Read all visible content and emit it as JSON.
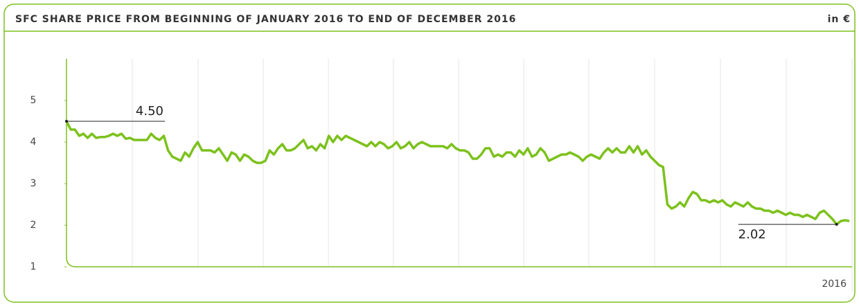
{
  "chart_data": {
    "type": "line",
    "title": "SFC SHARE PRICE FROM BEGINNING OF JANUARY 2016 TO END OF DECEMBER 2016",
    "unit_label": "in €",
    "x_label": "2016",
    "color": "#7cc11c",
    "ylim": [
      1,
      6
    ],
    "yticks": [
      1,
      2,
      3,
      4,
      5
    ],
    "annotations": [
      {
        "value": 4.5,
        "label": "4.50"
      },
      {
        "value": 2.02,
        "label": "2.02"
      }
    ],
    "values": [
      4.5,
      4.3,
      4.3,
      4.15,
      4.2,
      4.1,
      4.2,
      4.1,
      4.12,
      4.12,
      4.15,
      4.2,
      4.15,
      4.2,
      4.08,
      4.1,
      4.05,
      4.05,
      4.05,
      4.05,
      4.2,
      4.1,
      4.05,
      4.15,
      3.8,
      3.65,
      3.6,
      3.55,
      3.75,
      3.65,
      3.85,
      4.0,
      3.8,
      3.8,
      3.8,
      3.75,
      3.85,
      3.7,
      3.55,
      3.75,
      3.7,
      3.55,
      3.7,
      3.65,
      3.55,
      3.5,
      3.5,
      3.55,
      3.8,
      3.7,
      3.85,
      3.95,
      3.8,
      3.8,
      3.85,
      3.95,
      4.05,
      3.85,
      3.9,
      3.8,
      3.95,
      3.85,
      4.15,
      4.0,
      4.15,
      4.05,
      4.15,
      4.1,
      4.05,
      4.0,
      3.95,
      3.9,
      4.0,
      3.9,
      4.0,
      3.95,
      3.85,
      3.9,
      4.0,
      3.85,
      3.9,
      4.0,
      3.85,
      3.95,
      4.0,
      3.95,
      3.9,
      3.9,
      3.9,
      3.9,
      3.85,
      3.95,
      3.85,
      3.8,
      3.8,
      3.75,
      3.6,
      3.6,
      3.7,
      3.85,
      3.85,
      3.65,
      3.7,
      3.65,
      3.75,
      3.75,
      3.65,
      3.8,
      3.7,
      3.85,
      3.65,
      3.7,
      3.85,
      3.75,
      3.55,
      3.6,
      3.65,
      3.7,
      3.7,
      3.75,
      3.7,
      3.65,
      3.55,
      3.65,
      3.7,
      3.65,
      3.6,
      3.75,
      3.85,
      3.75,
      3.85,
      3.75,
      3.75,
      3.9,
      3.75,
      3.9,
      3.7,
      3.8,
      3.65,
      3.55,
      3.45,
      3.4,
      2.5,
      2.4,
      2.45,
      2.55,
      2.45,
      2.65,
      2.8,
      2.75,
      2.6,
      2.6,
      2.55,
      2.6,
      2.55,
      2.6,
      2.5,
      2.45,
      2.55,
      2.5,
      2.45,
      2.55,
      2.45,
      2.4,
      2.4,
      2.35,
      2.35,
      2.3,
      2.35,
      2.3,
      2.25,
      2.3,
      2.25,
      2.25,
      2.2,
      2.25,
      2.2,
      2.15,
      2.3,
      2.35,
      2.25,
      2.15,
      2.02,
      2.1,
      2.12,
      2.1
    ]
  }
}
